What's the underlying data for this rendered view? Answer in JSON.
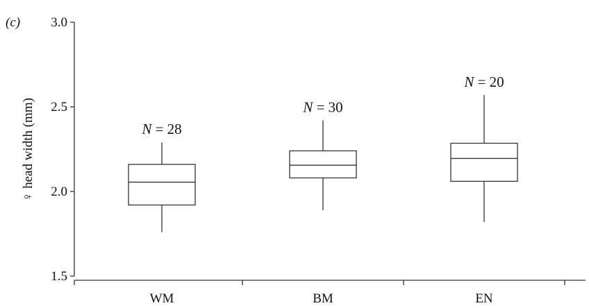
{
  "panel_label": "(c)",
  "chart_data": {
    "type": "boxplot",
    "title": "",
    "xlabel": "",
    "ylabel": "♀ head width (mm)",
    "ylim": [
      1.5,
      3.0
    ],
    "yticks": [
      1.5,
      2.0,
      2.5,
      3.0
    ],
    "ytick_labels": [
      "1.5",
      "2.0",
      "2.5",
      "3.0"
    ],
    "grid": false,
    "categories": [
      "WM",
      "BM",
      "EN"
    ],
    "boxes": [
      {
        "category": "WM",
        "n_prefix": "N",
        "n_value": "28",
        "whisker_low": 1.76,
        "q1": 1.92,
        "median": 2.055,
        "q3": 2.16,
        "whisker_high": 2.29
      },
      {
        "category": "BM",
        "n_prefix": "N",
        "n_value": "30",
        "whisker_low": 1.89,
        "q1": 2.08,
        "median": 2.155,
        "q3": 2.24,
        "whisker_high": 2.42
      },
      {
        "category": "EN",
        "n_prefix": "N",
        "n_value": "20",
        "whisker_low": 1.82,
        "q1": 2.06,
        "median": 2.195,
        "q3": 2.285,
        "whisker_high": 2.57
      }
    ]
  }
}
